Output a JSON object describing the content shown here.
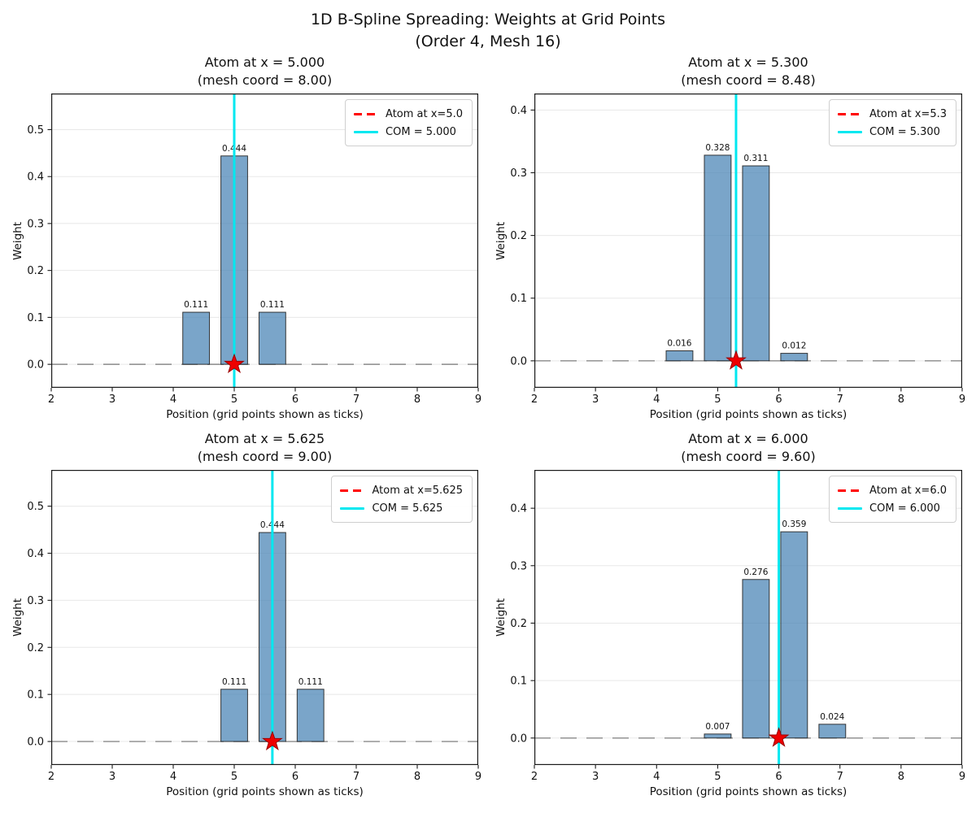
{
  "figure": {
    "suptitle_line1": "1D B-Spline Spreading: Weights at Grid Points",
    "suptitle_line2": "(Order 4, Mesh 16)"
  },
  "colors": {
    "bar_fill": "rgba(70,130,180,0.72)",
    "bar_edge": "rgba(35,35,35,0.9)",
    "com_line": "#00e8f0",
    "atom_line": "#ff0000",
    "star_fill": "#ee0000",
    "star_edge": "#990000",
    "baseline": "#8a8a8a",
    "gridline": "#e8e8e8",
    "spine": "#1a1a1a",
    "text": "#111111"
  },
  "chart_data": [
    {
      "type": "bar",
      "title": "Atom at x = 5.000",
      "subtitle": "(mesh coord = 8.00)",
      "xlabel": "Position (grid points shown as ticks)",
      "ylabel": "Weight",
      "legend_atom": "Atom at x=5.0",
      "legend_com": "COM = 5.000",
      "atom_x": 5.0,
      "com_x": 5.0,
      "bars": {
        "x": [
          4.375,
          5.0,
          5.625
        ],
        "values": [
          0.111,
          0.444,
          0.111
        ],
        "labels": [
          "0.111",
          "0.444",
          "0.111"
        ]
      },
      "bar_width": 0.4375,
      "xlim": [
        2,
        9
      ],
      "ylim": [
        -0.05,
        0.577
      ],
      "xticks": [
        "2",
        "3",
        "4",
        "5",
        "6",
        "7",
        "8",
        "9"
      ],
      "yticks": [
        "0.0",
        "0.1",
        "0.2",
        "0.3",
        "0.4",
        "0.5"
      ],
      "grid": true,
      "legend_position": "upper right"
    },
    {
      "type": "bar",
      "title": "Atom at x = 5.300",
      "subtitle": "(mesh coord = 8.48)",
      "xlabel": "Position (grid points shown as ticks)",
      "ylabel": "Weight",
      "legend_atom": "Atom at x=5.3",
      "legend_com": "COM = 5.300",
      "atom_x": 5.3,
      "com_x": 5.3,
      "bars": {
        "x": [
          4.375,
          5.0,
          5.625,
          6.25
        ],
        "values": [
          0.016,
          0.328,
          0.311,
          0.012
        ],
        "labels": [
          "0.016",
          "0.328",
          "0.311",
          "0.012"
        ]
      },
      "bar_width": 0.4375,
      "xlim": [
        2,
        9
      ],
      "ylim": [
        -0.043,
        0.4264
      ],
      "xticks": [
        "2",
        "3",
        "4",
        "5",
        "6",
        "7",
        "8",
        "9"
      ],
      "yticks": [
        "0.0",
        "0.1",
        "0.2",
        "0.3",
        "0.4"
      ],
      "grid": true,
      "legend_position": "upper right"
    },
    {
      "type": "bar",
      "title": "Atom at x = 5.625",
      "subtitle": "(mesh coord = 9.00)",
      "xlabel": "Position (grid points shown as ticks)",
      "ylabel": "Weight",
      "legend_atom": "Atom at x=5.625",
      "legend_com": "COM = 5.625",
      "atom_x": 5.625,
      "com_x": 5.625,
      "bars": {
        "x": [
          5.0,
          5.625,
          6.25
        ],
        "values": [
          0.111,
          0.444,
          0.111
        ],
        "labels": [
          "0.111",
          "0.444",
          "0.111"
        ]
      },
      "bar_width": 0.4375,
      "xlim": [
        2,
        9
      ],
      "ylim": [
        -0.05,
        0.577
      ],
      "xticks": [
        "2",
        "3",
        "4",
        "5",
        "6",
        "7",
        "8",
        "9"
      ],
      "yticks": [
        "0.0",
        "0.1",
        "0.2",
        "0.3",
        "0.4",
        "0.5"
      ],
      "grid": true,
      "legend_position": "upper right"
    },
    {
      "type": "bar",
      "title": "Atom at x = 6.000",
      "subtitle": "(mesh coord = 9.60)",
      "xlabel": "Position (grid points shown as ticks)",
      "ylabel": "Weight",
      "legend_atom": "Atom at x=6.0",
      "legend_com": "COM = 6.000",
      "atom_x": 6.0,
      "com_x": 6.0,
      "bars": {
        "x": [
          5.0,
          5.625,
          6.25,
          6.875
        ],
        "values": [
          0.007,
          0.276,
          0.359,
          0.024
        ],
        "labels": [
          "0.007",
          "0.276",
          "0.359",
          "0.024"
        ]
      },
      "bar_width": 0.4375,
      "xlim": [
        2,
        9
      ],
      "ylim": [
        -0.047,
        0.4667
      ],
      "xticks": [
        "2",
        "3",
        "4",
        "5",
        "6",
        "7",
        "8",
        "9"
      ],
      "yticks": [
        "0.0",
        "0.1",
        "0.2",
        "0.3",
        "0.4"
      ],
      "grid": true,
      "legend_position": "upper right"
    }
  ]
}
